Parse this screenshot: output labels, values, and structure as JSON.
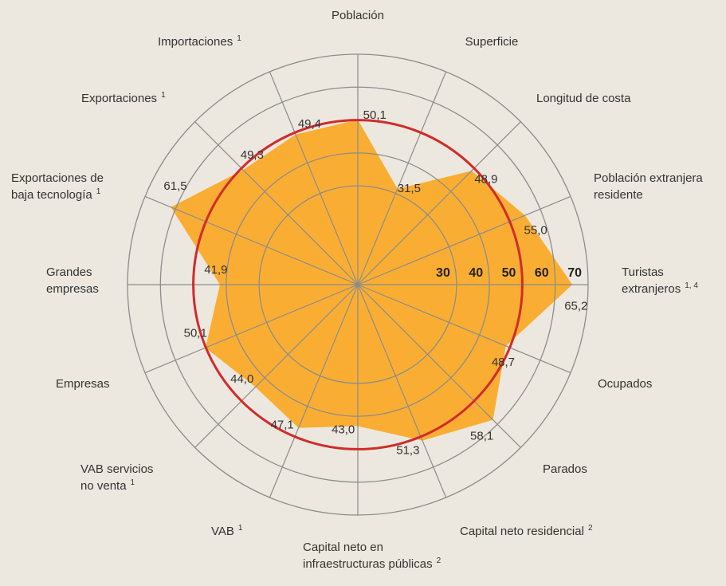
{
  "chart_data": {
    "type": "radar",
    "categories": [
      [
        "Población"
      ],
      [
        "Superficie"
      ],
      [
        "Longitud de costa"
      ],
      [
        "Población extranjera",
        "residente"
      ],
      [
        "Turistas",
        "extranjeros"
      ],
      [
        "Ocupados"
      ],
      [
        "Parados"
      ],
      [
        "Capital neto residencial"
      ],
      [
        "Capital neto en",
        "infraestructuras públicas"
      ],
      [
        "VAB"
      ],
      [
        "VAB servicios",
        "no venta"
      ],
      [
        "Empresas"
      ],
      [
        "Grandes",
        "empresas"
      ],
      [
        "Exportaciones de",
        "baja tecnología"
      ],
      [
        "Exportaciones"
      ],
      [
        "Importaciones"
      ]
    ],
    "category_notes": [
      null,
      null,
      null,
      null,
      "1, 4",
      null,
      null,
      "2",
      "2",
      "1",
      "1",
      null,
      null,
      "1",
      "1",
      "1"
    ],
    "values": [
      50.1,
      31.5,
      48.9,
      55.0,
      65.2,
      48.7,
      58.1,
      51.3,
      43.0,
      47.1,
      44.0,
      50.1,
      41.9,
      61.5,
      49.3,
      49.4
    ],
    "value_labels": [
      "50,1",
      "31,5",
      "48,9",
      "55,0",
      "65,2",
      "48,7",
      "58,1",
      "51,3",
      "43,0",
      "47,1",
      "44,0",
      "50,1",
      "41,9",
      "61,5",
      "49,3",
      "49,4"
    ],
    "color": "#f9ae33",
    "reference": {
      "value": 50,
      "color": "#d22b2b"
    },
    "rlim": [
      0,
      70
    ],
    "rticks": [
      30,
      40,
      50,
      60,
      70
    ]
  }
}
